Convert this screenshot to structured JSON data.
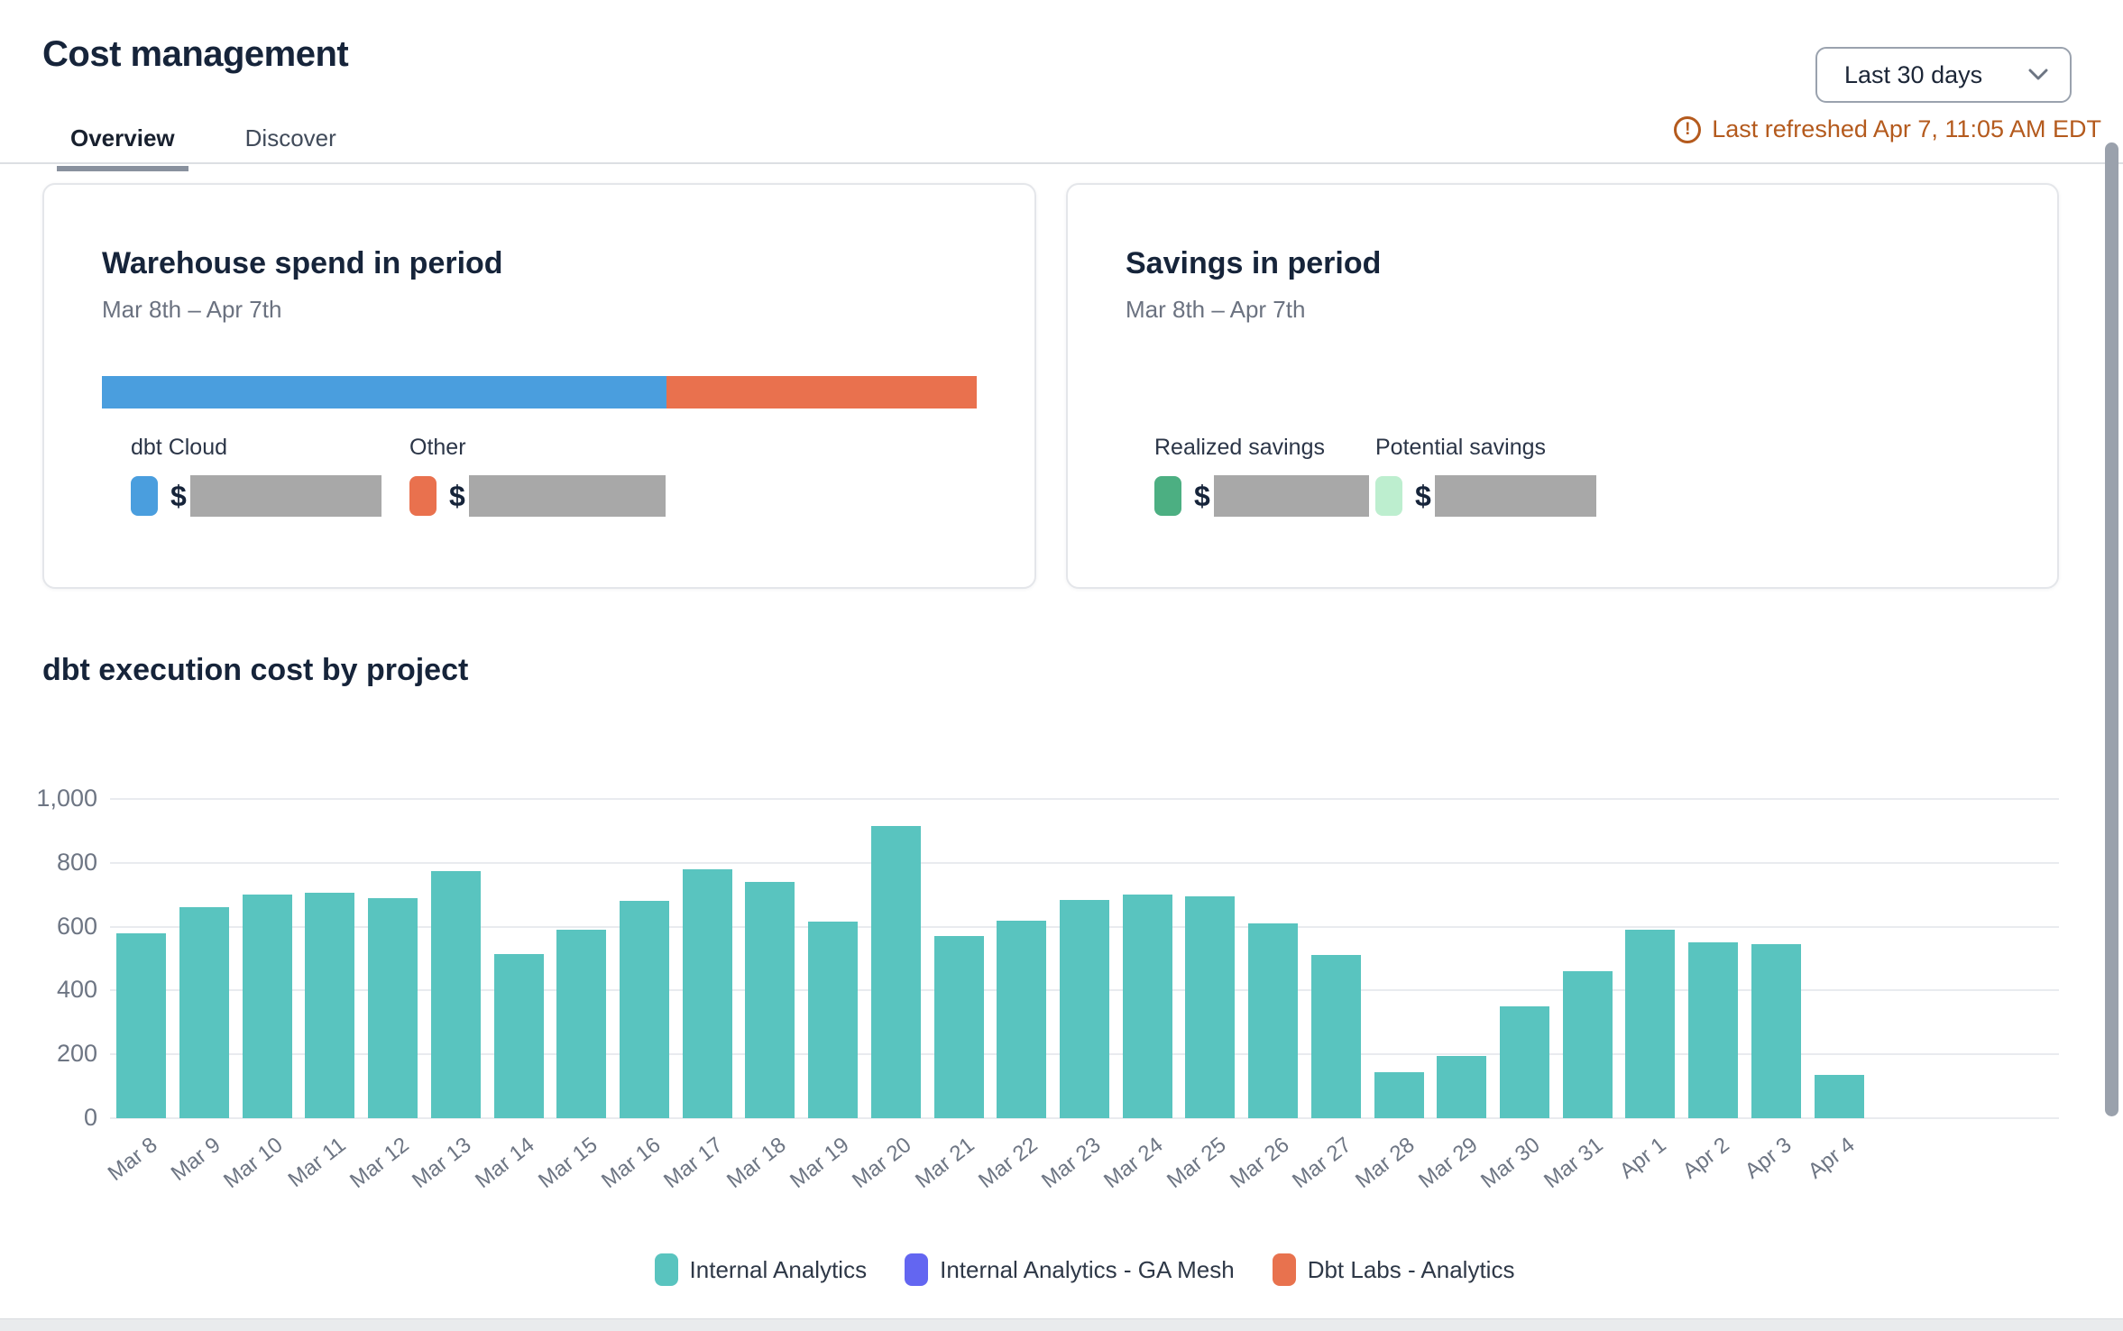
{
  "page": {
    "title": "Cost management"
  },
  "tabs": [
    {
      "label": "Overview",
      "active": true
    },
    {
      "label": "Discover",
      "active": false
    }
  ],
  "period_selector": {
    "value": "Last 30 days",
    "icon": "chevron-down-icon"
  },
  "refresh_status": {
    "text": "Last refreshed Apr 7, 11:05 AM EDT",
    "icon": "warning-circle-icon",
    "color": "#b45a1d"
  },
  "warehouse_card": {
    "title": "Warehouse spend in period",
    "subtitle": "Mar 8th – Apr 7th",
    "bar": {
      "dbt_cloud_pct": 64.5,
      "other_pct": 35.5
    },
    "items": [
      {
        "label": "dbt Cloud",
        "currency": "$",
        "color": "#4a9ede",
        "value_redacted": true,
        "redact_width": 212
      },
      {
        "label": "Other",
        "currency": "$",
        "color": "#e9714e",
        "value_redacted": true,
        "redact_width": 218
      }
    ]
  },
  "savings_card": {
    "title": "Savings in period",
    "subtitle": "Mar 8th – Apr 7th",
    "items": [
      {
        "label": "Realized savings",
        "currency": "$",
        "color": "#4caf82",
        "value_redacted": true,
        "redact_width": 172
      },
      {
        "label": "Potential savings",
        "currency": "$",
        "color": "#bdeecf",
        "value_redacted": true,
        "redact_width": 212
      }
    ]
  },
  "chart_data": {
    "type": "bar",
    "title": "dbt execution cost by project",
    "categories": [
      "Mar 8",
      "Mar 9",
      "Mar 10",
      "Mar 11",
      "Mar 12",
      "Mar 13",
      "Mar 14",
      "Mar 15",
      "Mar 16",
      "Mar 17",
      "Mar 18",
      "Mar 19",
      "Mar 20",
      "Mar 21",
      "Mar 22",
      "Mar 23",
      "Mar 24",
      "Mar 25",
      "Mar 26",
      "Mar 27",
      "Mar 28",
      "Mar 29",
      "Mar 30",
      "Mar 31",
      "Apr 1",
      "Apr 2",
      "Apr 3",
      "Apr 4"
    ],
    "slot_count": 31,
    "series": [
      {
        "name": "Internal Analytics",
        "color": "#59c4bf",
        "values": [
          580,
          660,
          700,
          705,
          690,
          775,
          515,
          590,
          680,
          780,
          740,
          615,
          915,
          570,
          620,
          685,
          700,
          695,
          610,
          510,
          145,
          195,
          350,
          460,
          590,
          550,
          545,
          135
        ]
      },
      {
        "name": "Internal Analytics - GA Mesh",
        "color": "#6366f1",
        "values": [
          0,
          0,
          0,
          0,
          0,
          0,
          0,
          0,
          0,
          0,
          0,
          0,
          0,
          0,
          0,
          0,
          0,
          0,
          0,
          0,
          0,
          0,
          0,
          0,
          0,
          0,
          0,
          0
        ]
      },
      {
        "name": "Dbt Labs - Analytics",
        "color": "#e8724e",
        "values": [
          0,
          0,
          0,
          0,
          0,
          0,
          0,
          0,
          0,
          0,
          0,
          0,
          0,
          0,
          0,
          0,
          0,
          0,
          0,
          0,
          0,
          0,
          0,
          0,
          0,
          0,
          0,
          0
        ]
      }
    ],
    "xlabel": "",
    "ylabel": "",
    "ylim": [
      0,
      1000
    ],
    "yticks": [
      {
        "value": 0,
        "label": "0"
      },
      {
        "value": 200,
        "label": "200"
      },
      {
        "value": 400,
        "label": "400"
      },
      {
        "value": 600,
        "label": "600"
      },
      {
        "value": 800,
        "label": "800"
      },
      {
        "value": 1000,
        "label": "1,000"
      }
    ],
    "grid": true,
    "legend_position": "bottom",
    "legend": [
      {
        "label": "Internal Analytics",
        "color": "#59c4bf"
      },
      {
        "label": "Internal Analytics - GA Mesh",
        "color": "#6366f1"
      },
      {
        "label": "Dbt Labs - Analytics",
        "color": "#e8724e"
      }
    ]
  },
  "colors": {
    "title": "#16243a",
    "muted_text": "#6b7280",
    "axis_text": "#6d7583",
    "gridline": "#e9ebef",
    "redaction_gray": "#a8a8a8",
    "card_border": "#e4e6ea",
    "tab_underline": "#89919e",
    "scrollbar": "#9aa1ac"
  }
}
